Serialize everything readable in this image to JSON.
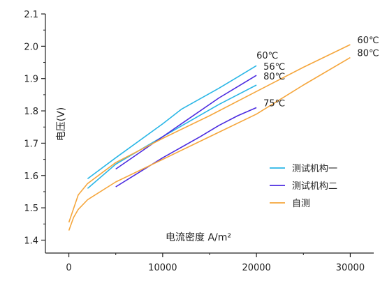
{
  "chart_data": {
    "type": "line",
    "title": "",
    "xlabel": "电流密度 A/m²",
    "ylabel": "电压(V)",
    "xlim": [
      -2500,
      32500
    ],
    "ylim": [
      1.36,
      2.1
    ],
    "x_ticks": [
      0,
      10000,
      20000,
      30000
    ],
    "x_tick_labels": [
      "0",
      "10000",
      "20000",
      "30000"
    ],
    "y_ticks": [
      1.4,
      1.5,
      1.6,
      1.7,
      1.8,
      1.9,
      2.0,
      2.1
    ],
    "y_tick_labels": [
      "1.4",
      "1.5",
      "1.6",
      "1.7",
      "1.8",
      "1.9",
      "2.0",
      "2.1"
    ],
    "grid": false,
    "legend_placement": "lower-right",
    "legend": [
      {
        "label": "测试机构一",
        "color": "#29b6e6"
      },
      {
        "label": "测试机构二",
        "color": "#4b2be0"
      },
      {
        "label": "自测",
        "color": "#f5a63c"
      }
    ],
    "series": [
      {
        "name": "60℃",
        "group": "测试机构一",
        "color": "#29b6e6",
        "x": [
          2000,
          5000,
          10000,
          12000,
          16000,
          18000,
          20000
        ],
        "y": [
          1.59,
          1.655,
          1.76,
          1.805,
          1.87,
          1.905,
          1.94
        ]
      },
      {
        "name": "80℃",
        "group": "测试机构一",
        "color": "#29b6e6",
        "x": [
          2000,
          5000,
          10000,
          16000,
          20000
        ],
        "y": [
          1.56,
          1.635,
          1.72,
          1.82,
          1.88
        ]
      },
      {
        "name": "56℃",
        "group": "测试机构二",
        "color": "#4b2be0",
        "x": [
          5000,
          10000,
          16000,
          20000
        ],
        "y": [
          1.62,
          1.72,
          1.84,
          1.91
        ]
      },
      {
        "name": "75℃",
        "group": "测试机构二",
        "color": "#4b2be0",
        "x": [
          5000,
          10000,
          14000,
          16000,
          18000,
          20000
        ],
        "y": [
          1.565,
          1.655,
          1.72,
          1.755,
          1.785,
          1.81
        ]
      },
      {
        "name": "60℃",
        "group": "自测",
        "color": "#f5a63c",
        "x": [
          0,
          1000,
          2000,
          5000,
          10000,
          15000,
          20000,
          25000,
          30000
        ],
        "y": [
          1.455,
          1.54,
          1.575,
          1.64,
          1.715,
          1.785,
          1.86,
          1.935,
          2.005
        ]
      },
      {
        "name": "80℃",
        "group": "自测",
        "color": "#f5a63c",
        "x": [
          0,
          500,
          1000,
          2000,
          5000,
          10000,
          15000,
          20000,
          25000,
          30000
        ],
        "y": [
          1.43,
          1.47,
          1.495,
          1.525,
          1.58,
          1.65,
          1.72,
          1.79,
          1.88,
          1.965
        ]
      }
    ]
  }
}
